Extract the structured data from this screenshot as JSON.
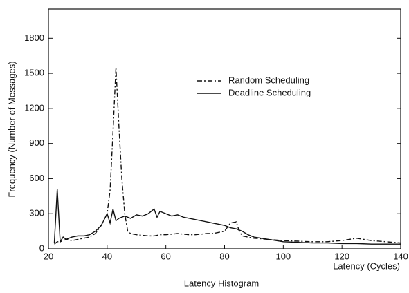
{
  "chart_data": {
    "type": "line",
    "caption": "Latency Histogram",
    "x_label": "Latency (Cycles)",
    "y_label": "Frequency (Number of Messages)",
    "x": [
      22,
      23,
      24,
      25,
      26,
      28,
      30,
      32,
      34,
      36,
      38,
      40,
      41,
      42,
      43,
      44,
      45,
      46,
      47,
      48,
      50,
      52,
      54,
      56,
      57,
      58,
      60,
      62,
      64,
      66,
      68,
      70,
      72,
      74,
      76,
      78,
      80,
      82,
      84,
      85,
      86,
      88,
      90,
      95,
      100,
      105,
      110,
      115,
      120,
      125,
      130,
      135,
      140
    ],
    "series": [
      {
        "name": "Random Scheduling",
        "color": "#111111",
        "dash": "dashdot",
        "values": [
          40,
          60,
          60,
          70,
          80,
          70,
          80,
          90,
          100,
          130,
          200,
          300,
          500,
          1000,
          1550,
          1050,
          600,
          300,
          150,
          130,
          120,
          115,
          110,
          110,
          115,
          120,
          120,
          125,
          130,
          125,
          120,
          120,
          125,
          130,
          130,
          140,
          150,
          220,
          230,
          150,
          110,
          100,
          90,
          80,
          70,
          65,
          60,
          60,
          70,
          90,
          70,
          60,
          50
        ]
      },
      {
        "name": "Deadline Scheduling",
        "color": "#111111",
        "dash": "solid",
        "values": [
          50,
          510,
          60,
          100,
          80,
          100,
          110,
          110,
          120,
          150,
          200,
          300,
          220,
          340,
          240,
          260,
          270,
          280,
          270,
          260,
          290,
          280,
          300,
          340,
          270,
          320,
          300,
          280,
          290,
          270,
          260,
          250,
          240,
          230,
          220,
          210,
          200,
          180,
          170,
          160,
          150,
          120,
          100,
          80,
          60,
          55,
          50,
          50,
          45,
          45,
          40,
          40,
          40
        ]
      }
    ],
    "xlim": [
      20,
      140
    ],
    "xticks": [
      20,
      40,
      60,
      80,
      100,
      120,
      140
    ],
    "ylim": [
      0,
      2050
    ],
    "yticks": [
      0,
      300,
      600,
      900,
      1200,
      1500,
      1800
    ]
  }
}
